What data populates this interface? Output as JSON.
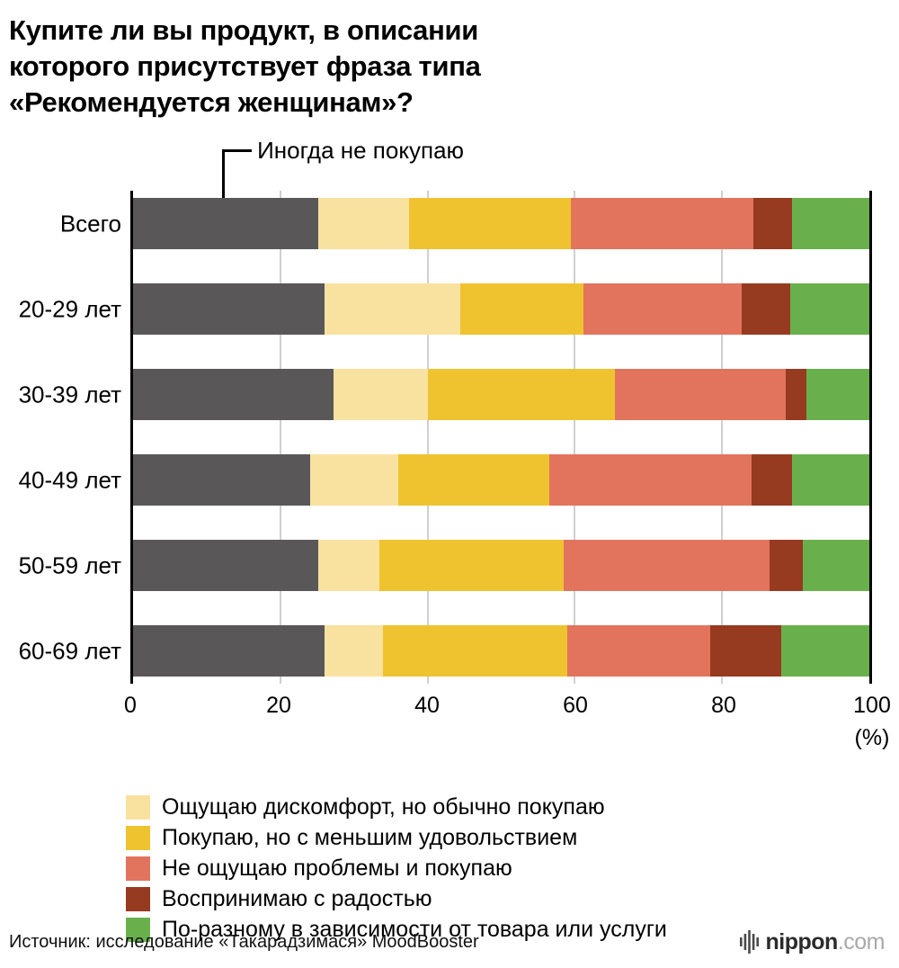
{
  "title": {
    "lines": [
      "Купите ли вы продукт, в описании",
      "которого присутствует фраза типа",
      "«Рекомендуется женщинам»?"
    ]
  },
  "annotation": {
    "label": "Иногда не покупаю"
  },
  "chart_data": {
    "type": "bar",
    "orientation": "horizontal",
    "stacked": true,
    "title": "Купите ли вы продукт, в описании которого присутствует фраза типа «Рекомендуется женщинам»?",
    "categories": [
      "Всего",
      "20-29 лет",
      "30-39 лет",
      "40-49 лет",
      "50-59 лет",
      "60-69 лет"
    ],
    "series": [
      {
        "name": "Иногда не покупаю",
        "color": "#595757",
        "values": [
          25.1,
          26.0,
          27.2,
          24.0,
          25.2,
          26.0
        ]
      },
      {
        "name": "Ощущаю дискомфорт, но обычно покупаю",
        "color": "#F9E2A0",
        "values": [
          12.4,
          18.4,
          12.8,
          12.0,
          8.3,
          8.0
        ]
      },
      {
        "name": "Покупаю, но с меньшим удовольствием",
        "color": "#EFC32F",
        "values": [
          22.0,
          16.8,
          25.5,
          20.5,
          25.0,
          25.0
        ]
      },
      {
        "name": "Не ощущаю проблемы и покупаю",
        "color": "#E2745E",
        "values": [
          24.7,
          21.5,
          23.2,
          27.5,
          27.9,
          19.4
        ]
      },
      {
        "name": "Воспринимаю с радостью",
        "color": "#963A20",
        "values": [
          5.3,
          6.5,
          2.8,
          5.5,
          4.6,
          9.6
        ]
      },
      {
        "name": "По-разному в зависимости от товара или услуги",
        "color": "#69B04D",
        "values": [
          10.5,
          10.8,
          8.5,
          10.5,
          9.0,
          12.0
        ]
      }
    ],
    "xlim": [
      0,
      100
    ],
    "x_ticks": [
      0,
      20,
      40,
      60,
      80,
      100
    ],
    "x_unit": "(%)",
    "grid": true,
    "legend_position": "bottom"
  },
  "legend": {
    "items": [
      {
        "label": "Ощущаю дискомфорт, но обычно покупаю",
        "color": "#F9E2A0"
      },
      {
        "label": "Покупаю, но с меньшим удовольствием",
        "color": "#EFC32F"
      },
      {
        "label": "Не ощущаю проблемы и покупаю",
        "color": "#E2745E"
      },
      {
        "label": "Воспринимаю с радостью",
        "color": "#963A20"
      },
      {
        "label": "По-разному в зависимости от товара или услуги",
        "color": "#69B04D"
      }
    ]
  },
  "footer": {
    "source": "Источник: исследование «Такарадзимася» MoodBooster",
    "logo": {
      "icon": "equalizer-bars-icon",
      "text": "nippon",
      "suffix": ".com"
    }
  }
}
